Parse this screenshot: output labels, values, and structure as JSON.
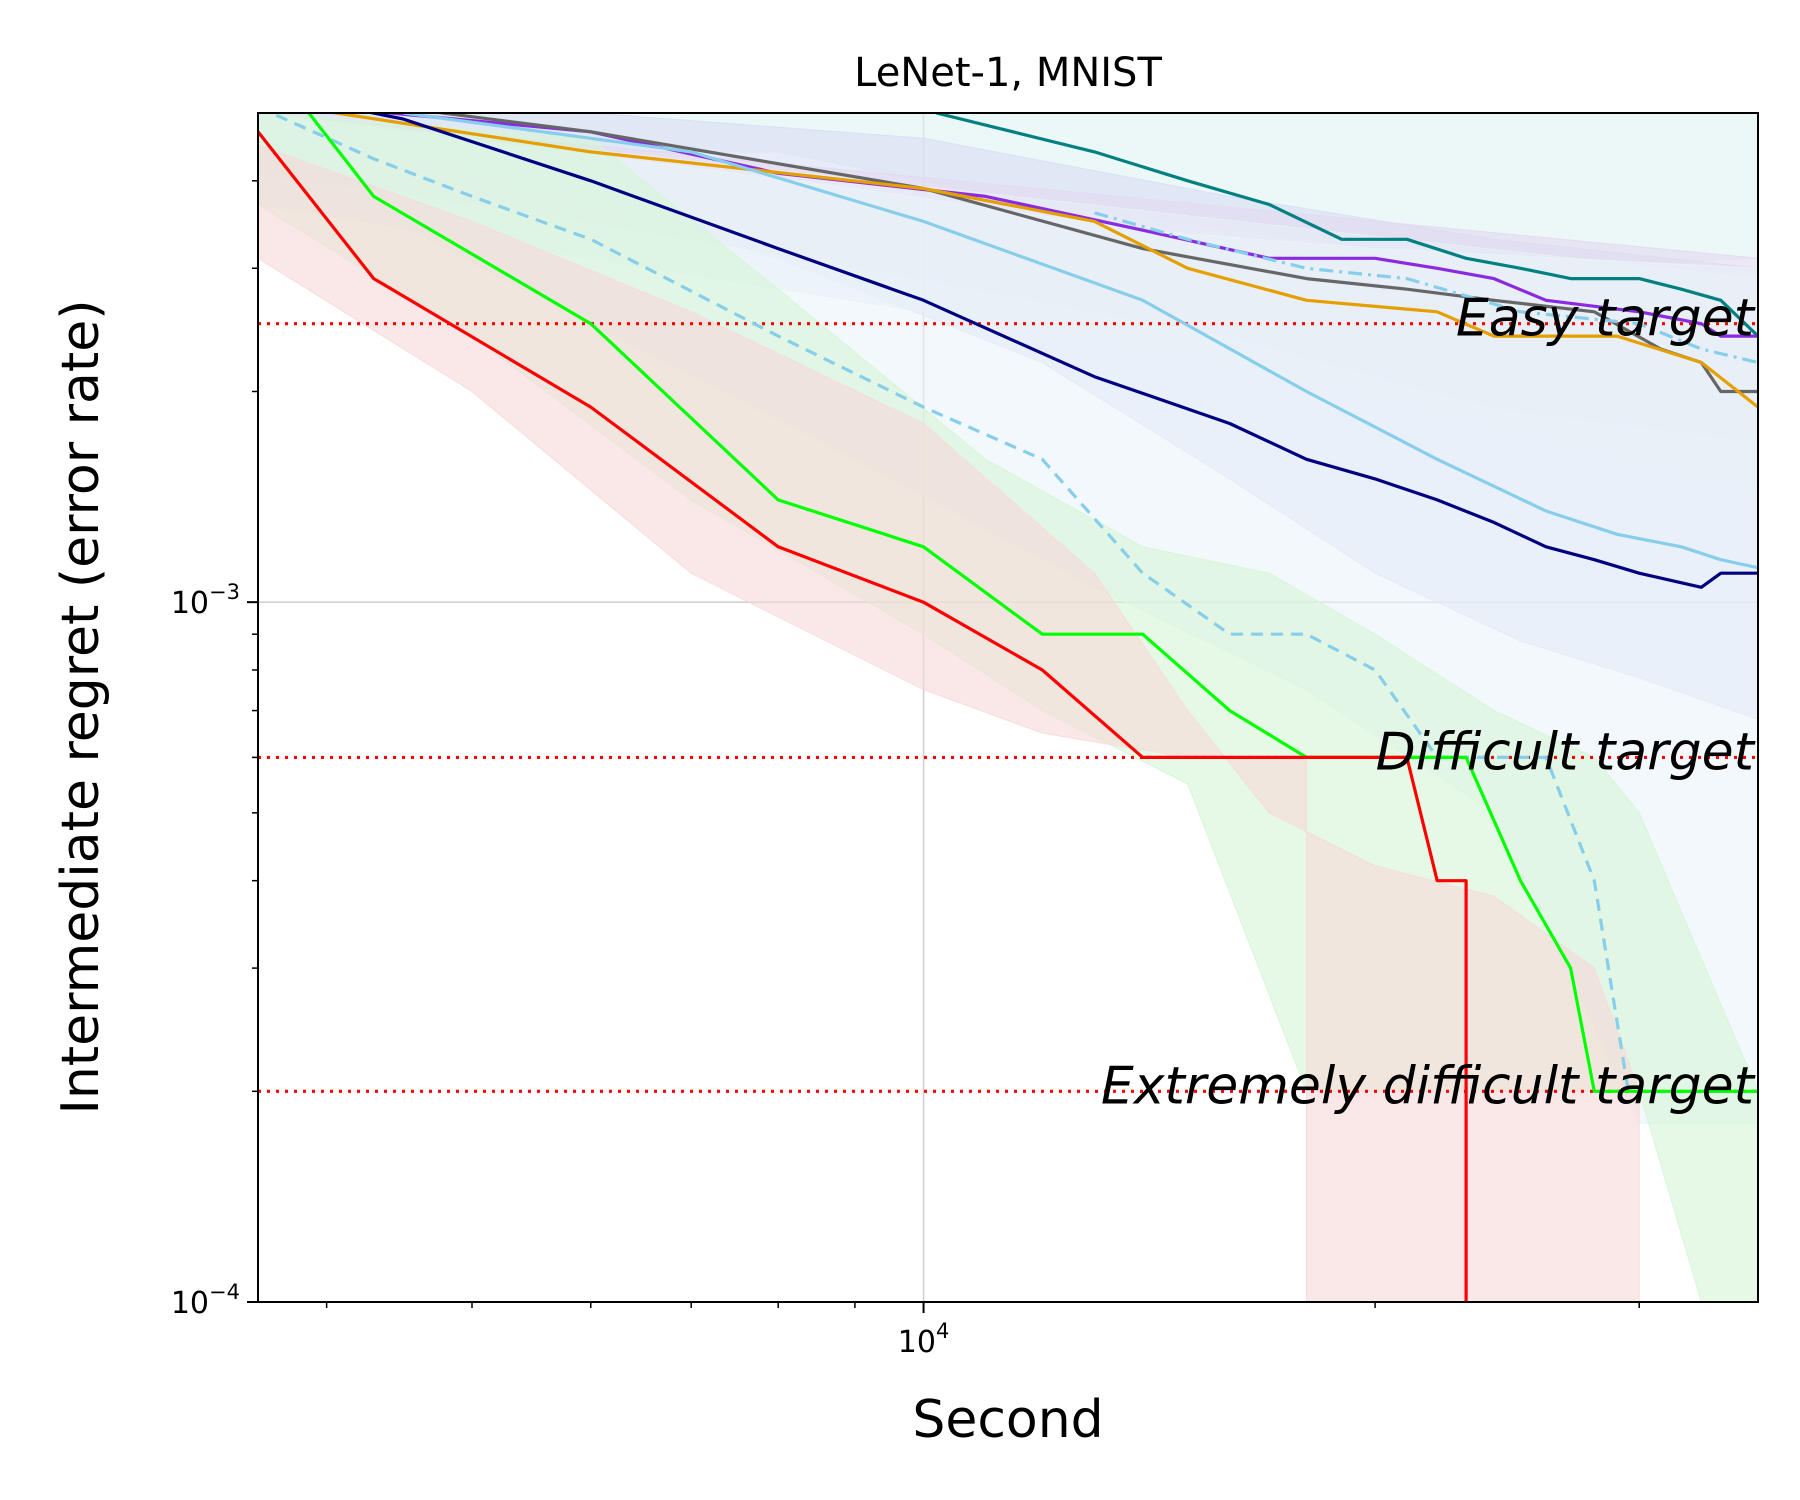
{
  "chart_data": {
    "type": "line",
    "title": "LeNet-1, MNIST",
    "xlabel": "Second",
    "ylabel": "Intermediate regret (error rate)",
    "xscale": "log",
    "yscale": "log",
    "xlim": [
      3600,
      36000
    ],
    "ylim": [
      0.0001,
      0.005
    ],
    "x_major_ticks": [
      {
        "value": 10000,
        "base": "10",
        "exp": "4"
      }
    ],
    "y_major_ticks": [
      {
        "value": 0.001,
        "base": "10",
        "exp": "−3"
      },
      {
        "value": 0.0001,
        "base": "10",
        "exp": "−4"
      }
    ],
    "x_minor_ticks": [
      4000,
      5000,
      6000,
      7000,
      8000,
      9000,
      20000,
      30000
    ],
    "y_minor_ticks": [
      0.0002,
      0.0003,
      0.0004,
      0.0005,
      0.0006,
      0.0007,
      0.0008,
      0.0009,
      0.002,
      0.003,
      0.004
    ],
    "grid": true,
    "targets": [
      {
        "label": "Easy target",
        "value": 0.0025
      },
      {
        "label": "Difficult target",
        "value": 0.0006
      },
      {
        "label": "Extremely difficult target",
        "value": 0.0002
      }
    ],
    "target_color": "#ff0000",
    "bands": [
      {
        "color": "#e0f2f1",
        "lower": [
          [
            3600,
            0.0044
          ],
          [
            8000,
            0.0044
          ],
          [
            12000,
            0.0037
          ],
          [
            18000,
            0.0033
          ],
          [
            25000,
            0.003
          ],
          [
            36000,
            0.0031
          ]
        ],
        "upper": [
          [
            3600,
            0.005
          ],
          [
            36000,
            0.005
          ]
        ]
      },
      {
        "color": "#d9ddf5",
        "lower": [
          [
            3600,
            0.0046
          ],
          [
            5000,
            0.0042
          ],
          [
            8000,
            0.0031
          ],
          [
            12000,
            0.0022
          ],
          [
            16000,
            0.0015
          ],
          [
            20000,
            0.0011
          ],
          [
            25000,
            0.00088
          ],
          [
            30000,
            0.00078
          ],
          [
            36000,
            0.00068
          ]
        ],
        "upper": [
          [
            3600,
            0.005
          ],
          [
            6000,
            0.005
          ],
          [
            10000,
            0.0046
          ],
          [
            16000,
            0.0038
          ],
          [
            24000,
            0.0033
          ],
          [
            36000,
            0.003
          ]
        ]
      },
      {
        "color": "#e3d9f0",
        "lower": [
          [
            3600,
            0.0041
          ],
          [
            6000,
            0.0035
          ],
          [
            10000,
            0.0029
          ],
          [
            16000,
            0.0024
          ],
          [
            24000,
            0.0019
          ],
          [
            36000,
            0.0017
          ]
        ],
        "upper": [
          [
            3600,
            0.005
          ],
          [
            36000,
            0.0031
          ]
        ]
      },
      {
        "color": "#e8eef6",
        "lower": [
          [
            3600,
            0.0037
          ],
          [
            6000,
            0.0031
          ],
          [
            10000,
            0.0026
          ],
          [
            16000,
            0.0022
          ],
          [
            24000,
            0.0018
          ],
          [
            36000,
            0.00145
          ]
        ],
        "upper": [
          [
            3600,
            0.005
          ],
          [
            36000,
            0.0029
          ]
        ]
      },
      {
        "color": "#eaf4f8",
        "lower": [
          [
            3600,
            0.0044
          ],
          [
            6000,
            0.0025
          ],
          [
            9000,
            0.0016
          ],
          [
            13000,
            0.00105
          ],
          [
            18000,
            0.00075
          ],
          [
            24000,
            0.0005
          ],
          [
            30000,
            0.00018
          ],
          [
            36000,
            0.00018
          ]
        ],
        "upper": [
          [
            3600,
            0.005
          ],
          [
            9000,
            0.0039
          ],
          [
            14000,
            0.0034
          ],
          [
            20000,
            0.0032
          ],
          [
            36000,
            0.003
          ]
        ]
      },
      {
        "color": "#d6f5d6",
        "lower": [
          [
            3600,
            0.0037
          ],
          [
            5000,
            0.0024
          ],
          [
            7000,
            0.0014
          ],
          [
            10000,
            0.0009
          ],
          [
            12000,
            0.0007
          ],
          [
            15000,
            0.00055
          ],
          [
            18000,
            0.0002
          ],
          [
            22000,
            0.0002
          ],
          [
            30000,
            0.0002
          ],
          [
            33000,
            0.0001
          ],
          [
            36000,
            0.0001
          ]
        ],
        "upper": [
          [
            3600,
            0.005
          ],
          [
            6000,
            0.0046
          ],
          [
            8000,
            0.0028
          ],
          [
            11000,
            0.0016
          ],
          [
            14000,
            0.0012
          ],
          [
            17000,
            0.0011
          ],
          [
            20000,
            0.0009
          ],
          [
            24000,
            0.0007
          ],
          [
            28000,
            0.0006
          ],
          [
            30000,
            0.0005
          ],
          [
            36000,
            0.0002
          ]
        ]
      },
      {
        "color": "#f7d9d9",
        "lower": [
          [
            3600,
            0.0031
          ],
          [
            5000,
            0.002
          ],
          [
            7000,
            0.0011
          ],
          [
            10000,
            0.00075
          ],
          [
            12000,
            0.00065
          ],
          [
            15000,
            0.0006
          ],
          [
            18000,
            0.0006
          ],
          [
            18000,
            0.0001
          ],
          [
            30000,
            0.0001
          ]
        ],
        "upper": [
          [
            3600,
            0.0045
          ],
          [
            5000,
            0.0035
          ],
          [
            7000,
            0.0026
          ],
          [
            10000,
            0.0018
          ],
          [
            13000,
            0.0011
          ],
          [
            15000,
            0.0007
          ],
          [
            17000,
            0.0005
          ],
          [
            20000,
            0.00042
          ],
          [
            24000,
            0.00038
          ],
          [
            28000,
            0.0003
          ],
          [
            30000,
            0.0002
          ]
        ]
      }
    ],
    "series": [
      {
        "name": "teal",
        "color": "#008080",
        "dash": "",
        "points": [
          [
            10200,
            0.005
          ],
          [
            13000,
            0.0044
          ],
          [
            15000,
            0.004
          ],
          [
            17000,
            0.0037
          ],
          [
            19000,
            0.0033
          ],
          [
            21000,
            0.0033
          ],
          [
            23000,
            0.0031
          ],
          [
            25000,
            0.003
          ],
          [
            27000,
            0.0029
          ],
          [
            30000,
            0.0029
          ],
          [
            32000,
            0.0028
          ],
          [
            34000,
            0.0027
          ],
          [
            36000,
            0.0024
          ]
        ]
      },
      {
        "name": "purple",
        "color": "#8a2be2",
        "dash": "",
        "points": [
          [
            3600,
            0.0053
          ],
          [
            4000,
            0.0051
          ],
          [
            6000,
            0.0047
          ],
          [
            8000,
            0.0041
          ],
          [
            11000,
            0.0038
          ],
          [
            14000,
            0.0034
          ],
          [
            17000,
            0.0031
          ],
          [
            20000,
            0.0031
          ],
          [
            22000,
            0.003
          ],
          [
            24000,
            0.0029
          ],
          [
            26000,
            0.0027
          ],
          [
            30000,
            0.0026
          ],
          [
            33000,
            0.0025
          ],
          [
            34000,
            0.0024
          ],
          [
            36000,
            0.0024
          ]
        ]
      },
      {
        "name": "dimgray",
        "color": "#666666",
        "dash": "",
        "points": [
          [
            3600,
            0.0054
          ],
          [
            6000,
            0.0047
          ],
          [
            10000,
            0.0039
          ],
          [
            14000,
            0.0032
          ],
          [
            18000,
            0.0029
          ],
          [
            21000,
            0.0028
          ],
          [
            24000,
            0.0027
          ],
          [
            28000,
            0.0026
          ],
          [
            31000,
            0.0023
          ],
          [
            33000,
            0.0022
          ],
          [
            34000,
            0.002
          ],
          [
            36000,
            0.002
          ]
        ]
      },
      {
        "name": "orange",
        "color": "#e69f00",
        "dash": "",
        "points": [
          [
            3600,
            0.0052
          ],
          [
            6000,
            0.0044
          ],
          [
            10000,
            0.0039
          ],
          [
            13000,
            0.0035
          ],
          [
            15000,
            0.003
          ],
          [
            18000,
            0.0027
          ],
          [
            22000,
            0.0026
          ],
          [
            24000,
            0.0024
          ],
          [
            29000,
            0.0024
          ],
          [
            33000,
            0.0022
          ],
          [
            36000,
            0.0019
          ]
        ]
      },
      {
        "name": "skyblue-dashdot",
        "color": "#87ceeb",
        "dash": "14,6,3,6",
        "points": [
          [
            13000,
            0.0036
          ],
          [
            15000,
            0.0033
          ],
          [
            18000,
            0.003
          ],
          [
            21000,
            0.0029
          ],
          [
            25000,
            0.0026
          ],
          [
            30000,
            0.0025
          ],
          [
            33000,
            0.0023
          ],
          [
            36000,
            0.0022
          ]
        ]
      },
      {
        "name": "navy",
        "color": "#000080",
        "dash": "",
        "points": [
          [
            3600,
            0.0054
          ],
          [
            4500,
            0.0049
          ],
          [
            6000,
            0.004
          ],
          [
            8000,
            0.0032
          ],
          [
            10000,
            0.0027
          ],
          [
            13000,
            0.0021
          ],
          [
            16000,
            0.0018
          ],
          [
            18000,
            0.0016
          ],
          [
            20000,
            0.0015
          ],
          [
            22000,
            0.0014
          ],
          [
            24000,
            0.0013
          ],
          [
            26000,
            0.0012
          ],
          [
            28000,
            0.00115
          ],
          [
            30000,
            0.0011
          ],
          [
            33000,
            0.00105
          ],
          [
            34000,
            0.0011
          ],
          [
            36000,
            0.0011
          ]
        ]
      },
      {
        "name": "skyblue-solid",
        "color": "#87ceeb",
        "dash": "",
        "points": [
          [
            4500,
            0.005
          ],
          [
            7000,
            0.0044
          ],
          [
            10000,
            0.0035
          ],
          [
            14000,
            0.0027
          ],
          [
            18000,
            0.002
          ],
          [
            22000,
            0.0016
          ],
          [
            26000,
            0.00135
          ],
          [
            29000,
            0.00125
          ],
          [
            32000,
            0.0012
          ],
          [
            34000,
            0.00115
          ],
          [
            36000,
            0.00112
          ]
        ]
      },
      {
        "name": "skyblue-dashed",
        "color": "#87ceeb",
        "dash": "12,8",
        "points": [
          [
            3600,
            0.0051
          ],
          [
            4300,
            0.0043
          ],
          [
            5000,
            0.0038
          ],
          [
            6000,
            0.0033
          ],
          [
            8000,
            0.0024
          ],
          [
            10000,
            0.0019
          ],
          [
            12000,
            0.0016
          ],
          [
            14000,
            0.0011
          ],
          [
            16000,
            0.0009
          ],
          [
            18000,
            0.0009
          ],
          [
            20000,
            0.0008
          ],
          [
            22000,
            0.0006
          ],
          [
            24000,
            0.0006
          ],
          [
            26000,
            0.0006
          ],
          [
            28000,
            0.0004
          ],
          [
            29500,
            0.0002
          ],
          [
            31000,
            0.0002
          ],
          [
            36000,
            0.0002
          ]
        ]
      },
      {
        "name": "lime",
        "color": "#00ff00",
        "dash": "",
        "points": [
          [
            3600,
            0.0062
          ],
          [
            4300,
            0.0038
          ],
          [
            6000,
            0.0025
          ],
          [
            8000,
            0.0014
          ],
          [
            10000,
            0.0012
          ],
          [
            12000,
            0.0009
          ],
          [
            14000,
            0.0009
          ],
          [
            16000,
            0.0007
          ],
          [
            18000,
            0.0006
          ],
          [
            21000,
            0.0006
          ],
          [
            23000,
            0.0006
          ],
          [
            25000,
            0.0004
          ],
          [
            27000,
            0.0003
          ],
          [
            28000,
            0.0002
          ],
          [
            36000,
            0.0002
          ]
        ]
      },
      {
        "name": "red",
        "color": "#ff0000",
        "dash": "",
        "points": [
          [
            3600,
            0.0047
          ],
          [
            4300,
            0.0029
          ],
          [
            6000,
            0.0019
          ],
          [
            8000,
            0.0012
          ],
          [
            10000,
            0.001
          ],
          [
            12000,
            0.0008
          ],
          [
            14000,
            0.0006
          ],
          [
            18000,
            0.0006
          ],
          [
            21000,
            0.0006
          ],
          [
            22000,
            0.0004
          ],
          [
            23000,
            0.0004
          ],
          [
            23000,
            5e-05
          ]
        ]
      }
    ]
  }
}
